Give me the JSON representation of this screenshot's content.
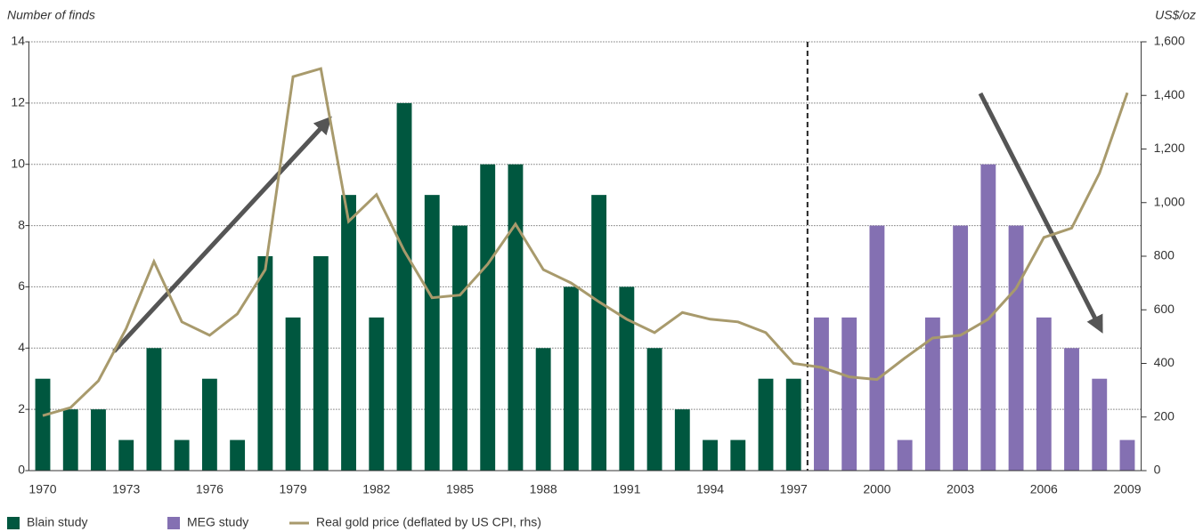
{
  "chart_data": {
    "type": "bar",
    "y_label": "Number of finds",
    "y2_label": "US$/oz",
    "categories": [
      "1970",
      null,
      null,
      "1973",
      null,
      null,
      "1976",
      null,
      null,
      "1979",
      null,
      null,
      "1982",
      null,
      null,
      "1985",
      null,
      null,
      "1988",
      null,
      null,
      "1991",
      null,
      null,
      "1994",
      null,
      null,
      "1997",
      null,
      null,
      "2000",
      null,
      null,
      "2003",
      null,
      null,
      "2006",
      null,
      null,
      "2009"
    ],
    "series": [
      {
        "name": "Blain study",
        "color": "#00573f",
        "type": "bar",
        "values": [
          3,
          2,
          2,
          1,
          4,
          1,
          3,
          1,
          7,
          5,
          7,
          9,
          5,
          12,
          9,
          8,
          10,
          10,
          4,
          6,
          9,
          6,
          4,
          2,
          1,
          1,
          3,
          3,
          null,
          null,
          null,
          null,
          null,
          null,
          null,
          null,
          null,
          null,
          null,
          null
        ]
      },
      {
        "name": "MEG study",
        "color": "#8470b2",
        "type": "bar",
        "values": [
          null,
          null,
          null,
          null,
          null,
          null,
          null,
          null,
          null,
          null,
          null,
          null,
          null,
          null,
          null,
          null,
          null,
          null,
          null,
          null,
          null,
          null,
          null,
          null,
          null,
          null,
          null,
          null,
          5,
          5,
          8,
          1,
          5,
          8,
          10,
          8,
          5,
          4,
          3,
          1
        ]
      },
      {
        "name": "Real gold price (deflated by US CPI, rhs)",
        "color": "#a89a6c",
        "type": "line",
        "axis": "y2",
        "values": [
          205,
          235,
          335,
          530,
          780,
          555,
          505,
          585,
          750,
          1470,
          1500,
          930,
          1030,
          820,
          645,
          655,
          770,
          920,
          750,
          700,
          630,
          565,
          515,
          590,
          565,
          555,
          515,
          400,
          385,
          350,
          340,
          420,
          495,
          505,
          565,
          680,
          870,
          905,
          1110,
          1410
        ]
      }
    ],
    "ylim": [
      0,
      14
    ],
    "yticks": [
      0,
      2,
      4,
      6,
      8,
      10,
      12,
      14
    ],
    "y2lim": [
      0,
      1600
    ],
    "y2ticks": [
      0,
      200,
      400,
      600,
      800,
      {
        "value": 1000,
        "label": "1,000"
      },
      {
        "value": 1200,
        "label": "1,200"
      },
      {
        "value": 1400,
        "label": "1,400"
      },
      {
        "value": 1600,
        "label": "1,600"
      }
    ],
    "grid": true
  }
}
